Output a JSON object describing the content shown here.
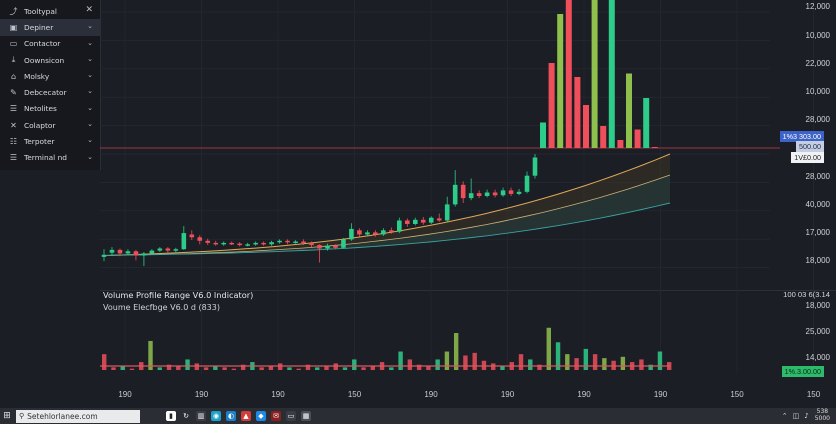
{
  "sidebar": {
    "items": [
      {
        "label": "Tooltypal",
        "icon": "share-icon",
        "glyph": "⤴",
        "trail": "close"
      },
      {
        "label": "Depiner",
        "icon": "window-icon",
        "glyph": "▣",
        "trail": "chevron",
        "active": true
      },
      {
        "label": "Contactor",
        "icon": "folder-icon",
        "glyph": "▭",
        "trail": "chevron"
      },
      {
        "label": "Oownsicon",
        "icon": "download-icon",
        "glyph": "⤓",
        "trail": "chevron"
      },
      {
        "label": "Molsky",
        "icon": "home-icon",
        "glyph": "⌂",
        "trail": "chevron"
      },
      {
        "label": "Debcecator",
        "icon": "edit-icon",
        "glyph": "✎",
        "trail": "chevron"
      },
      {
        "label": "Netolites",
        "icon": "list-icon",
        "glyph": "☰",
        "trail": "chevron"
      },
      {
        "label": "Colaptor",
        "icon": "crosshair-icon",
        "glyph": "✕",
        "trail": "chevron"
      },
      {
        "label": "Terpoter",
        "icon": "layers-icon",
        "glyph": "☷",
        "trail": "chevron"
      },
      {
        "label": "Terminal nd",
        "icon": "terminal-icon",
        "glyph": "☰",
        "trail": "chevron"
      }
    ]
  },
  "price_axis": [
    {
      "label": "12,000",
      "y": 7
    },
    {
      "label": "10,000",
      "y": 36
    },
    {
      "label": "22,000",
      "y": 64
    },
    {
      "label": "10,000",
      "y": 92
    },
    {
      "label": "28,000",
      "y": 120
    },
    {
      "label": "28,000",
      "y": 177
    },
    {
      "label": "40,000",
      "y": 205
    },
    {
      "label": "17,000",
      "y": 233
    },
    {
      "label": "18,000",
      "y": 261
    }
  ],
  "price_tags": {
    "blue": "1%3 303.00",
    "pale": "500.00",
    "white": "1V£0.00"
  },
  "indicator": {
    "title": "Volume Profile Range V6.0 Indicator)",
    "subtitle": "Voume Elecfbge V6.0 d (833)",
    "right_label": "100 03 6(3.14",
    "axis": [
      {
        "label": "18,000",
        "y": 306
      },
      {
        "label": "25,000",
        "y": 332
      },
      {
        "label": "14,000",
        "y": 358
      }
    ],
    "current_tag": "1%.3.00.00"
  },
  "x_axis": {
    "ticks": [
      "190",
      "190",
      "190",
      "150",
      "190",
      "190",
      "190",
      "190",
      "150",
      "150"
    ]
  },
  "colors": {
    "up": "#2ecc8a",
    "down": "#ef4f5a",
    "olive": "#8fbf4d",
    "band_upper": "#e0a957",
    "band_lower": "#3aa3a0",
    "hline": "#9a3a3f"
  },
  "chart_data": {
    "type": "bar",
    "title": "Volume Profile Range V6.0 Indicator)",
    "candles": [
      {
        "o": 16660,
        "c": 16720,
        "h": 16880,
        "l": 16540
      },
      {
        "o": 16780,
        "c": 16860,
        "h": 16940,
        "l": 16700
      },
      {
        "o": 16860,
        "c": 16760,
        "h": 16900,
        "l": 16680
      },
      {
        "o": 16760,
        "c": 16820,
        "h": 16880,
        "l": 16700
      },
      {
        "o": 16820,
        "c": 16700,
        "h": 16860,
        "l": 16560
      },
      {
        "o": 16700,
        "c": 16760,
        "h": 16800,
        "l": 16400
      },
      {
        "o": 16760,
        "c": 16840,
        "h": 16880,
        "l": 16740
      },
      {
        "o": 16840,
        "c": 16900,
        "h": 16940,
        "l": 16800
      },
      {
        "o": 16900,
        "c": 16840,
        "h": 16940,
        "l": 16780
      },
      {
        "o": 16840,
        "c": 16880,
        "h": 16920,
        "l": 16800
      },
      {
        "o": 16880,
        "c": 17340,
        "h": 17540,
        "l": 16860
      },
      {
        "o": 17300,
        "c": 17220,
        "h": 17420,
        "l": 17140
      },
      {
        "o": 17220,
        "c": 17120,
        "h": 17280,
        "l": 17020
      },
      {
        "o": 17120,
        "c": 17060,
        "h": 17180,
        "l": 17000
      },
      {
        "o": 17060,
        "c": 17020,
        "h": 17120,
        "l": 16980
      },
      {
        "o": 17020,
        "c": 17060,
        "h": 17100,
        "l": 16980
      },
      {
        "o": 17060,
        "c": 17040,
        "h": 17100,
        "l": 17000
      },
      {
        "o": 17040,
        "c": 17000,
        "h": 17080,
        "l": 16960
      },
      {
        "o": 17000,
        "c": 17020,
        "h": 17060,
        "l": 16960
      },
      {
        "o": 17020,
        "c": 17060,
        "h": 17100,
        "l": 16980
      },
      {
        "o": 17060,
        "c": 17020,
        "h": 17100,
        "l": 16980
      },
      {
        "o": 17020,
        "c": 17080,
        "h": 17120,
        "l": 16980
      },
      {
        "o": 17080,
        "c": 17120,
        "h": 17160,
        "l": 17040
      },
      {
        "o": 17120,
        "c": 17080,
        "h": 17160,
        "l": 17020
      },
      {
        "o": 17080,
        "c": 17100,
        "h": 17140,
        "l": 17040
      },
      {
        "o": 17100,
        "c": 17060,
        "h": 17160,
        "l": 17000
      },
      {
        "o": 17060,
        "c": 17000,
        "h": 17100,
        "l": 16940
      },
      {
        "o": 17000,
        "c": 16900,
        "h": 17020,
        "l": 16500
      },
      {
        "o": 16900,
        "c": 16980,
        "h": 17040,
        "l": 16840
      },
      {
        "o": 16980,
        "c": 16920,
        "h": 17020,
        "l": 16880
      },
      {
        "o": 16920,
        "c": 17160,
        "h": 17200,
        "l": 16900
      },
      {
        "o": 17160,
        "c": 17460,
        "h": 17620,
        "l": 17120
      },
      {
        "o": 17420,
        "c": 17300,
        "h": 17480,
        "l": 17240
      },
      {
        "o": 17300,
        "c": 17360,
        "h": 17420,
        "l": 17260
      },
      {
        "o": 17360,
        "c": 17300,
        "h": 17420,
        "l": 17240
      },
      {
        "o": 17300,
        "c": 17420,
        "h": 17480,
        "l": 17260
      },
      {
        "o": 17420,
        "c": 17380,
        "h": 17500,
        "l": 17320
      },
      {
        "o": 17380,
        "c": 17700,
        "h": 17780,
        "l": 17340
      },
      {
        "o": 17700,
        "c": 17600,
        "h": 17760,
        "l": 17520
      },
      {
        "o": 17600,
        "c": 17720,
        "h": 17780,
        "l": 17560
      },
      {
        "o": 17720,
        "c": 17640,
        "h": 17800,
        "l": 17580
      },
      {
        "o": 17640,
        "c": 17780,
        "h": 17820,
        "l": 17600
      },
      {
        "o": 17760,
        "c": 17700,
        "h": 17900,
        "l": 17660
      },
      {
        "o": 17700,
        "c": 18160,
        "h": 18380,
        "l": 17660
      },
      {
        "o": 18160,
        "c": 18720,
        "h": 19140,
        "l": 18100
      },
      {
        "o": 18720,
        "c": 18340,
        "h": 18820,
        "l": 18200
      },
      {
        "o": 18340,
        "c": 18480,
        "h": 18900,
        "l": 18280
      },
      {
        "o": 18480,
        "c": 18400,
        "h": 18560,
        "l": 18340
      },
      {
        "o": 18400,
        "c": 18500,
        "h": 18580,
        "l": 18360
      },
      {
        "o": 18500,
        "c": 18420,
        "h": 18580,
        "l": 18360
      },
      {
        "o": 18420,
        "c": 18560,
        "h": 18640,
        "l": 18380
      },
      {
        "o": 18560,
        "c": 18460,
        "h": 18640,
        "l": 18400
      },
      {
        "o": 18460,
        "c": 18520,
        "h": 18600,
        "l": 18420
      },
      {
        "o": 18520,
        "c": 18980,
        "h": 19100,
        "l": 18480
      },
      {
        "o": 18980,
        "c": 19500,
        "h": 19600,
        "l": 18900
      }
    ],
    "spikes": [
      {
        "top": 20500,
        "color": "up"
      },
      {
        "top": 22200,
        "color": "down"
      },
      {
        "top": 23600,
        "color": "olive"
      },
      {
        "top": 24000,
        "color": "down"
      },
      {
        "top": 21800,
        "color": "down"
      },
      {
        "top": 21000,
        "color": "down"
      },
      {
        "top": 24000,
        "color": "olive"
      },
      {
        "top": 20400,
        "color": "down"
      },
      {
        "top": 24000,
        "color": "up"
      },
      {
        "top": 20000,
        "color": "down"
      },
      {
        "top": 21900,
        "color": "olive"
      },
      {
        "top": 20300,
        "color": "down"
      },
      {
        "top": 21200,
        "color": "up"
      },
      {
        "top": 19800,
        "color": "down"
      }
    ],
    "volumes": [
      {
        "v": 14200,
        "d": "down"
      },
      {
        "v": 13200,
        "d": "down"
      },
      {
        "v": 13300,
        "d": "up"
      },
      {
        "v": 13100,
        "d": "down"
      },
      {
        "v": 13600,
        "d": "down"
      },
      {
        "v": 15200,
        "d": "olive"
      },
      {
        "v": 13200,
        "d": "up"
      },
      {
        "v": 13400,
        "d": "down"
      },
      {
        "v": 13300,
        "d": "down"
      },
      {
        "v": 13800,
        "d": "up"
      },
      {
        "v": 13500,
        "d": "down"
      },
      {
        "v": 13200,
        "d": "down"
      },
      {
        "v": 13300,
        "d": "up"
      },
      {
        "v": 13200,
        "d": "down"
      },
      {
        "v": 13100,
        "d": "down"
      },
      {
        "v": 13400,
        "d": "down"
      },
      {
        "v": 13600,
        "d": "up"
      },
      {
        "v": 13200,
        "d": "down"
      },
      {
        "v": 13300,
        "d": "down"
      },
      {
        "v": 13500,
        "d": "down"
      },
      {
        "v": 13200,
        "d": "up"
      },
      {
        "v": 13100,
        "d": "down"
      },
      {
        "v": 13400,
        "d": "down"
      },
      {
        "v": 13200,
        "d": "up"
      },
      {
        "v": 13300,
        "d": "down"
      },
      {
        "v": 13500,
        "d": "down"
      },
      {
        "v": 13200,
        "d": "up"
      },
      {
        "v": 13800,
        "d": "up"
      },
      {
        "v": 13200,
        "d": "down"
      },
      {
        "v": 13300,
        "d": "down"
      },
      {
        "v": 13600,
        "d": "down"
      },
      {
        "v": 13200,
        "d": "up"
      },
      {
        "v": 14400,
        "d": "up"
      },
      {
        "v": 13800,
        "d": "down"
      },
      {
        "v": 13400,
        "d": "down"
      },
      {
        "v": 13300,
        "d": "down"
      },
      {
        "v": 13800,
        "d": "up"
      },
      {
        "v": 14400,
        "d": "olive"
      },
      {
        "v": 15800,
        "d": "olive"
      },
      {
        "v": 14100,
        "d": "down"
      },
      {
        "v": 14300,
        "d": "down"
      },
      {
        "v": 13700,
        "d": "down"
      },
      {
        "v": 13500,
        "d": "down"
      },
      {
        "v": 13300,
        "d": "up"
      },
      {
        "v": 13600,
        "d": "down"
      },
      {
        "v": 14200,
        "d": "down"
      },
      {
        "v": 13800,
        "d": "up"
      },
      {
        "v": 13400,
        "d": "down"
      },
      {
        "v": 16200,
        "d": "olive"
      },
      {
        "v": 15100,
        "d": "up"
      },
      {
        "v": 14200,
        "d": "olive"
      },
      {
        "v": 13900,
        "d": "down"
      },
      {
        "v": 14600,
        "d": "up"
      },
      {
        "v": 14200,
        "d": "down"
      },
      {
        "v": 13900,
        "d": "olive"
      },
      {
        "v": 13700,
        "d": "down"
      },
      {
        "v": 14000,
        "d": "olive"
      },
      {
        "v": 13600,
        "d": "down"
      },
      {
        "v": 13800,
        "d": "down"
      },
      {
        "v": 13400,
        "d": "up"
      },
      {
        "v": 14400,
        "d": "up"
      },
      {
        "v": 13600,
        "d": "down"
      }
    ]
  },
  "taskbar": {
    "search_text": "Setehlorlanee.com",
    "apps": [
      {
        "icon": "task-view-icon",
        "glyph": "▮",
        "bg": "#ffffff",
        "fg": "#222"
      },
      {
        "icon": "refresh-icon",
        "glyph": "↻",
        "bg": "#2a2d33",
        "fg": "#fff"
      },
      {
        "icon": "files-icon",
        "glyph": "▥",
        "bg": "#3a3d44",
        "fg": "#fff"
      },
      {
        "icon": "browser-icon",
        "glyph": "◉",
        "bg": "#1aa3c9",
        "fg": "#fff"
      },
      {
        "icon": "edge-icon",
        "glyph": "◐",
        "bg": "#1c7fc8",
        "fg": "#fff"
      },
      {
        "icon": "shield-icon",
        "glyph": "▲",
        "bg": "#d33b35",
        "fg": "#fff"
      },
      {
        "icon": "store-icon",
        "glyph": "◆",
        "bg": "#1e88e5",
        "fg": "#fff"
      },
      {
        "icon": "mail-icon",
        "glyph": "✉",
        "bg": "#8a1f1f",
        "fg": "#fff"
      },
      {
        "icon": "monitor-icon",
        "glyph": "▭",
        "bg": "#3a3d44",
        "fg": "#fff"
      },
      {
        "icon": "grid-icon",
        "glyph": "▦",
        "bg": "#4a4e56",
        "fg": "#fff"
      }
    ],
    "tray_icons": [
      "⌃",
      "◫",
      "♪"
    ],
    "clock_time": "538",
    "clock_date": "5000"
  }
}
